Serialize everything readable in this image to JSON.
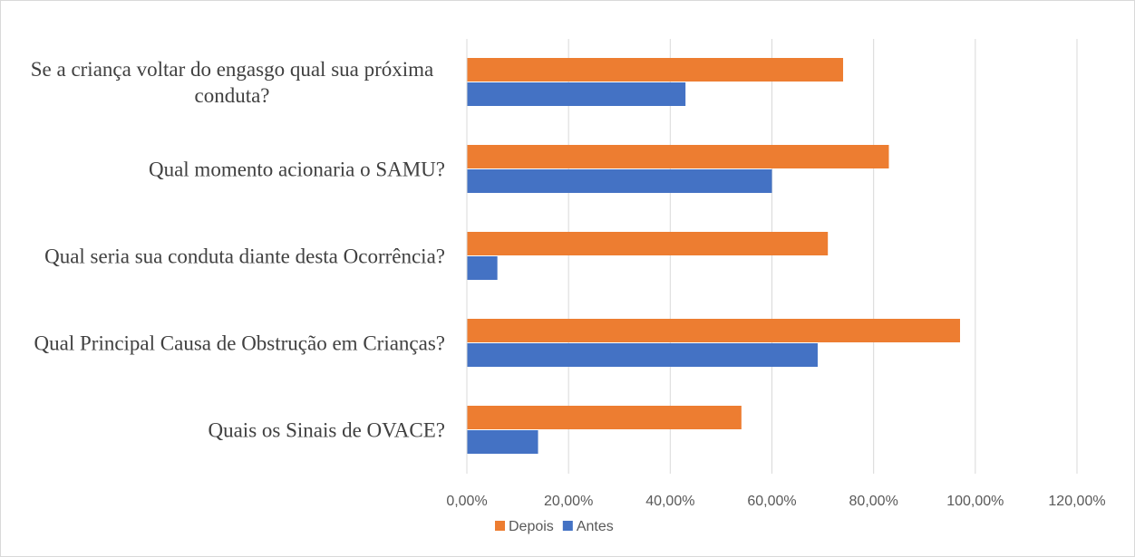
{
  "chart_data": {
    "type": "barh",
    "categories": [
      "Se a criança voltar do engasgo qual sua próxima conduta?",
      "Qual momento acionaria o SAMU?",
      "Qual seria sua conduta diante desta Ocorrência?",
      "Qual Principal Causa de Obstrução em Crianças?",
      "Quais os Sinais de OVACE?"
    ],
    "series": [
      {
        "name": "Depois",
        "color": "#ed7d31",
        "values": [
          74,
          83,
          71,
          97,
          54
        ]
      },
      {
        "name": "Antes",
        "color": "#4472c4",
        "values": [
          43,
          60,
          6,
          69,
          14
        ]
      }
    ],
    "xlim": [
      0,
      120
    ],
    "xticks": [
      {
        "value": 0,
        "label": "0,00%"
      },
      {
        "value": 20,
        "label": "20,00%"
      },
      {
        "value": 40,
        "label": "40,00%"
      },
      {
        "value": 60,
        "label": "60,00%"
      },
      {
        "value": 80,
        "label": "80,00%"
      },
      {
        "value": 100,
        "label": "100,00%"
      },
      {
        "value": 120,
        "label": "120,00%"
      }
    ],
    "grid": true
  }
}
